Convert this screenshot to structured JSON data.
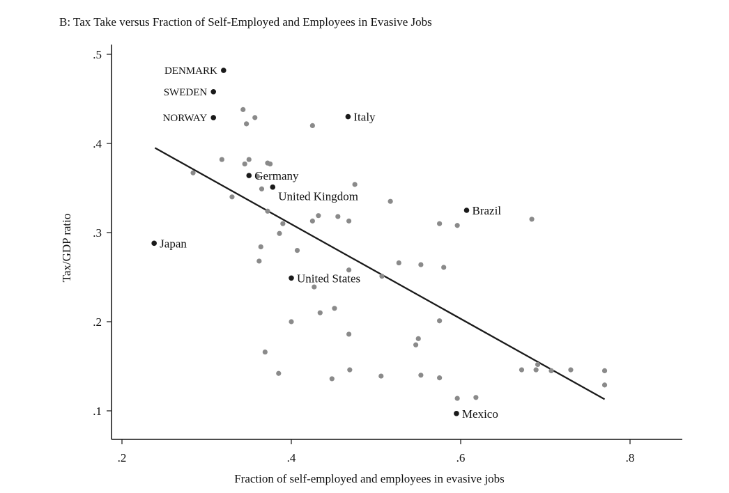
{
  "chart_data": {
    "type": "scatter",
    "title": "B: Tax Take versus Fraction of Self-Employed and Employees in Evasive Jobs",
    "xlabel": "Fraction of self-employed and employees in evasive jobs",
    "ylabel": "Tax/GDP ratio",
    "xlim": [
      0.19,
      0.86
    ],
    "ylim": [
      0.07,
      0.51
    ],
    "xticks": [
      0.2,
      0.4,
      0.6,
      0.8
    ],
    "xtick_labels": [
      ".2",
      ".4",
      ".6",
      ".8"
    ],
    "yticks": [
      0.1,
      0.2,
      0.3,
      0.4,
      0.5
    ],
    "ytick_labels": [
      ".1",
      ".2",
      ".3",
      ".4",
      ".5"
    ],
    "grid": false,
    "labeled_color": "#1a1a1a",
    "unlabeled_color": "#8a8a8a",
    "line_color": "#1a1a1a",
    "labeled_points": [
      {
        "label": "DENMARK",
        "x": 0.32,
        "y": 0.482,
        "side": "left"
      },
      {
        "label": "SWEDEN",
        "x": 0.308,
        "y": 0.458,
        "side": "left"
      },
      {
        "label": "NORWAY",
        "x": 0.308,
        "y": 0.429,
        "side": "left"
      },
      {
        "label": "Italy",
        "x": 0.467,
        "y": 0.43,
        "side": "right"
      },
      {
        "label": "Germany",
        "x": 0.35,
        "y": 0.364,
        "side": "right"
      },
      {
        "label": "United Kingdom",
        "x": 0.378,
        "y": 0.351,
        "side": "below"
      },
      {
        "label": "Brazil",
        "x": 0.607,
        "y": 0.325,
        "side": "right"
      },
      {
        "label": "Japan",
        "x": 0.238,
        "y": 0.288,
        "side": "right"
      },
      {
        "label": "United States",
        "x": 0.4,
        "y": 0.249,
        "side": "right"
      },
      {
        "label": "Mexico",
        "x": 0.595,
        "y": 0.097,
        "side": "right"
      }
    ],
    "points": [
      [
        0.343,
        0.438
      ],
      [
        0.357,
        0.429
      ],
      [
        0.347,
        0.422
      ],
      [
        0.425,
        0.42
      ],
      [
        0.318,
        0.382
      ],
      [
        0.35,
        0.382
      ],
      [
        0.345,
        0.377
      ],
      [
        0.372,
        0.378
      ],
      [
        0.375,
        0.377
      ],
      [
        0.284,
        0.367
      ],
      [
        0.36,
        0.363
      ],
      [
        0.365,
        0.349
      ],
      [
        0.475,
        0.354
      ],
      [
        0.33,
        0.34
      ],
      [
        0.517,
        0.335
      ],
      [
        0.372,
        0.324
      ],
      [
        0.432,
        0.319
      ],
      [
        0.455,
        0.318
      ],
      [
        0.468,
        0.313
      ],
      [
        0.425,
        0.313
      ],
      [
        0.39,
        0.31
      ],
      [
        0.575,
        0.31
      ],
      [
        0.596,
        0.308
      ],
      [
        0.684,
        0.315
      ],
      [
        0.386,
        0.299
      ],
      [
        0.364,
        0.284
      ],
      [
        0.407,
        0.28
      ],
      [
        0.362,
        0.268
      ],
      [
        0.527,
        0.266
      ],
      [
        0.553,
        0.264
      ],
      [
        0.58,
        0.261
      ],
      [
        0.468,
        0.258
      ],
      [
        0.507,
        0.251
      ],
      [
        0.427,
        0.239
      ],
      [
        0.451,
        0.215
      ],
      [
        0.434,
        0.21
      ],
      [
        0.4,
        0.2
      ],
      [
        0.575,
        0.201
      ],
      [
        0.468,
        0.186
      ],
      [
        0.55,
        0.181
      ],
      [
        0.547,
        0.174
      ],
      [
        0.369,
        0.166
      ],
      [
        0.385,
        0.142
      ],
      [
        0.469,
        0.146
      ],
      [
        0.448,
        0.136
      ],
      [
        0.506,
        0.139
      ],
      [
        0.553,
        0.14
      ],
      [
        0.575,
        0.137
      ],
      [
        0.691,
        0.152
      ],
      [
        0.672,
        0.146
      ],
      [
        0.689,
        0.146
      ],
      [
        0.707,
        0.145
      ],
      [
        0.73,
        0.146
      ],
      [
        0.77,
        0.145
      ],
      [
        0.77,
        0.129
      ],
      [
        0.596,
        0.114
      ],
      [
        0.618,
        0.115
      ]
    ],
    "fit_line": {
      "x": [
        0.239,
        0.77
      ],
      "y": [
        0.395,
        0.113
      ]
    }
  }
}
